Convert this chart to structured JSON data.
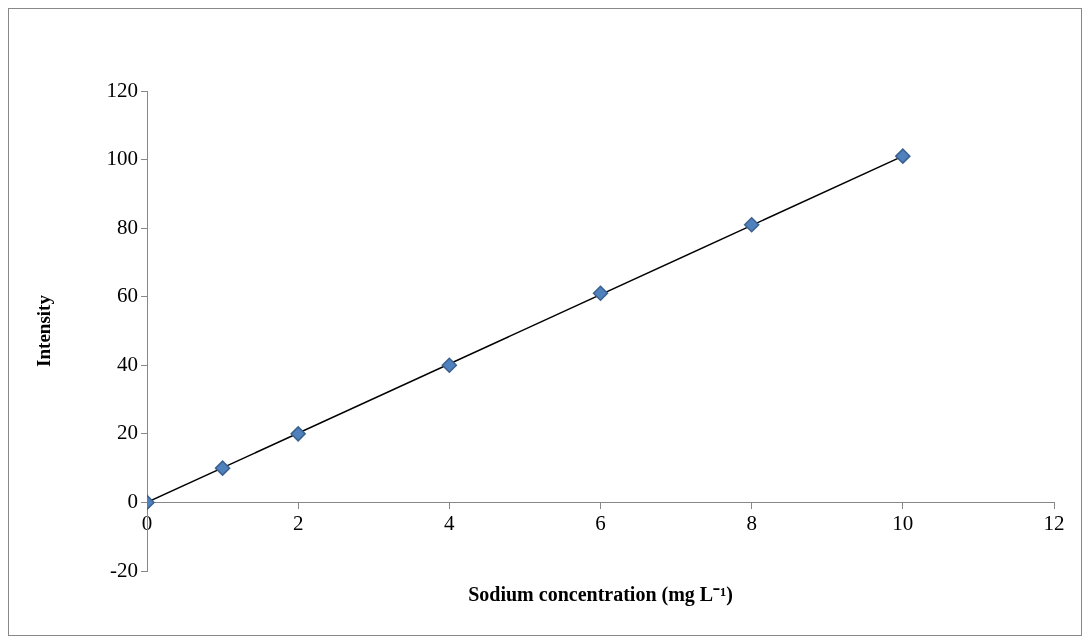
{
  "chart_data": {
    "type": "scatter",
    "xlabel": "Sodium concentration (mg L⁻¹)",
    "ylabel": "Intensity",
    "series": [
      {
        "type": "scatter",
        "color": "#4f81bd",
        "marker": "diamond",
        "x": [
          0,
          1,
          2,
          4,
          6,
          8,
          10
        ],
        "values": [
          0,
          10,
          20,
          40,
          61,
          81,
          101
        ]
      },
      {
        "type": "line",
        "color": "#000000",
        "marker": "none",
        "line_style": "solid",
        "x": [
          0,
          10
        ],
        "values": [
          0,
          101
        ]
      }
    ],
    "xlim": [
      0,
      12
    ],
    "xticks": [
      0,
      2,
      4,
      6,
      8,
      10,
      12
    ],
    "ylim": [
      -20,
      120
    ],
    "yticks": [
      -20,
      0,
      20,
      40,
      60,
      80,
      100,
      120
    ],
    "grid": false,
    "legend": false
  }
}
